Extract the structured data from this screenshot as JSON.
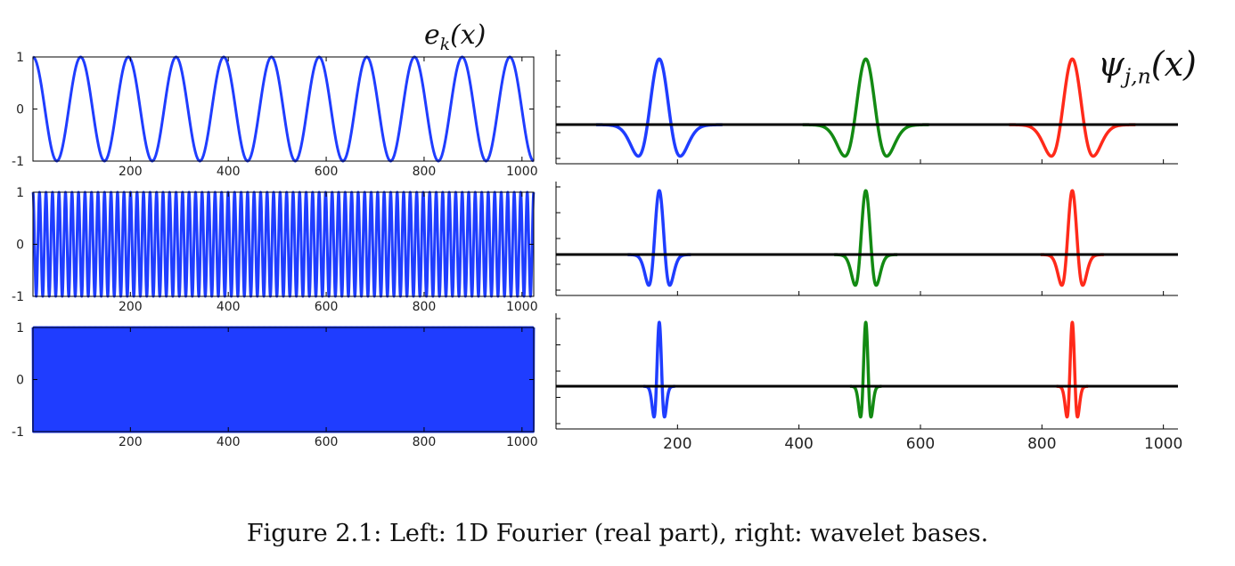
{
  "caption": "Figure 2.1: Left: 1D Fourier (real part), right: wavelet bases.",
  "left_label": {
    "base": "e",
    "sub": "k",
    "arg": "(x)"
  },
  "right_label": {
    "base": "ψ",
    "sub": "j,n",
    "arg": "(x)"
  },
  "colors": {
    "fourier": "#1f3dff",
    "blue": "#1f3dff",
    "green": "#138a13",
    "red": "#ff2a1a",
    "axis_line": "#000000"
  },
  "chart_data": [
    {
      "type": "line",
      "panel": "fourier-1",
      "x_range": [
        1,
        1024
      ],
      "ylim": [
        -1,
        1
      ],
      "frequency_cycles": 10.5,
      "x_ticks": [
        "200",
        "400",
        "600",
        "800",
        "1000"
      ],
      "y_ticks": [
        "1",
        "0",
        "-1"
      ],
      "grid": false
    },
    {
      "type": "line",
      "panel": "fourier-2",
      "x_range": [
        1,
        1024
      ],
      "ylim": [
        -1,
        1
      ],
      "frequency_cycles": 77,
      "x_ticks": [
        "200",
        "400",
        "600",
        "800",
        "1000"
      ],
      "y_ticks": [
        "1",
        "0",
        "-1"
      ],
      "grid": false
    },
    {
      "type": "line",
      "panel": "fourier-3",
      "x_range": [
        1,
        1024
      ],
      "ylim": [
        -1,
        1
      ],
      "frequency_cycles": 470,
      "x_ticks": [
        "200",
        "400",
        "600",
        "800",
        "1000"
      ],
      "y_ticks": [
        "1",
        "0",
        "-1"
      ],
      "grid": false
    },
    {
      "type": "line",
      "panel": "wavelet-1",
      "x_range": [
        0,
        1024
      ],
      "scale": 1,
      "series": [
        {
          "color": "blue",
          "center": 170
        },
        {
          "color": "green",
          "center": 510
        },
        {
          "color": "red",
          "center": 850
        }
      ]
    },
    {
      "type": "line",
      "panel": "wavelet-2",
      "x_range": [
        0,
        1024
      ],
      "scale": 2,
      "series": [
        {
          "color": "blue",
          "center": 170
        },
        {
          "color": "green",
          "center": 510
        },
        {
          "color": "red",
          "center": 850
        }
      ]
    },
    {
      "type": "line",
      "panel": "wavelet-3",
      "x_range": [
        0,
        1024
      ],
      "scale": 3,
      "x_ticks": [
        "200",
        "400",
        "600",
        "800",
        "1000"
      ],
      "series": [
        {
          "color": "blue",
          "center": 170
        },
        {
          "color": "green",
          "center": 510
        },
        {
          "color": "red",
          "center": 850
        }
      ]
    }
  ]
}
